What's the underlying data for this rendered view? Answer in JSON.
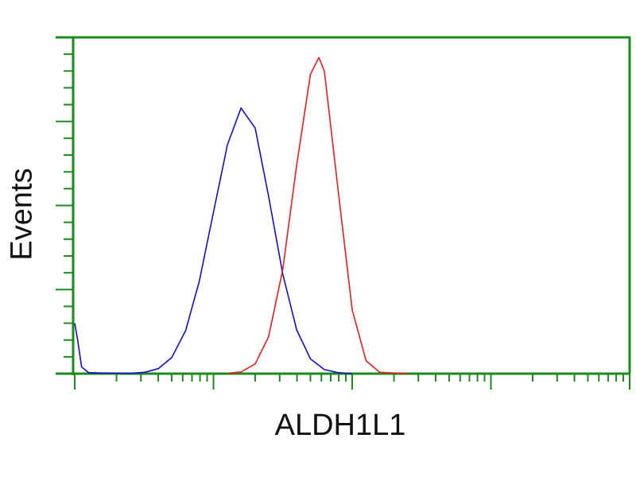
{
  "chart_data": {
    "type": "line",
    "title": "",
    "xlabel": "ALDH1L1",
    "ylabel": "Events",
    "x_scale": "log",
    "xlim": [
      1,
      10000
    ],
    "ylim": [
      0,
      1
    ],
    "grid": false,
    "legend": "none",
    "colors": {
      "axis": "#1e8a1e",
      "control": "#1010c8",
      "sample": "#e02020"
    },
    "series": [
      {
        "color": "#1010c8",
        "x": [
          1,
          1.05,
          1.12,
          1.26,
          1.6,
          2.5,
          3.2,
          4,
          5,
          6.3,
          7.9,
          10,
          12.6,
          15.8,
          20,
          25,
          31.6,
          39.8,
          50,
          63,
          79,
          100
        ],
        "y": [
          0.15,
          0.1,
          0.02,
          0.003,
          0.002,
          0.001,
          0.004,
          0.015,
          0.048,
          0.128,
          0.274,
          0.48,
          0.68,
          0.79,
          0.73,
          0.527,
          0.296,
          0.13,
          0.044,
          0.012,
          0.003,
          0
        ]
      },
      {
        "color": "#e02020",
        "x": [
          12.6,
          15.8,
          20,
          25,
          31.6,
          39.8,
          50,
          57.5,
          63,
          79,
          100,
          126,
          158,
          200,
          250
        ],
        "y": [
          0.001,
          0.005,
          0.029,
          0.11,
          0.31,
          0.62,
          0.89,
          0.94,
          0.9,
          0.55,
          0.19,
          0.038,
          0.004,
          0.002,
          0
        ]
      }
    ]
  }
}
